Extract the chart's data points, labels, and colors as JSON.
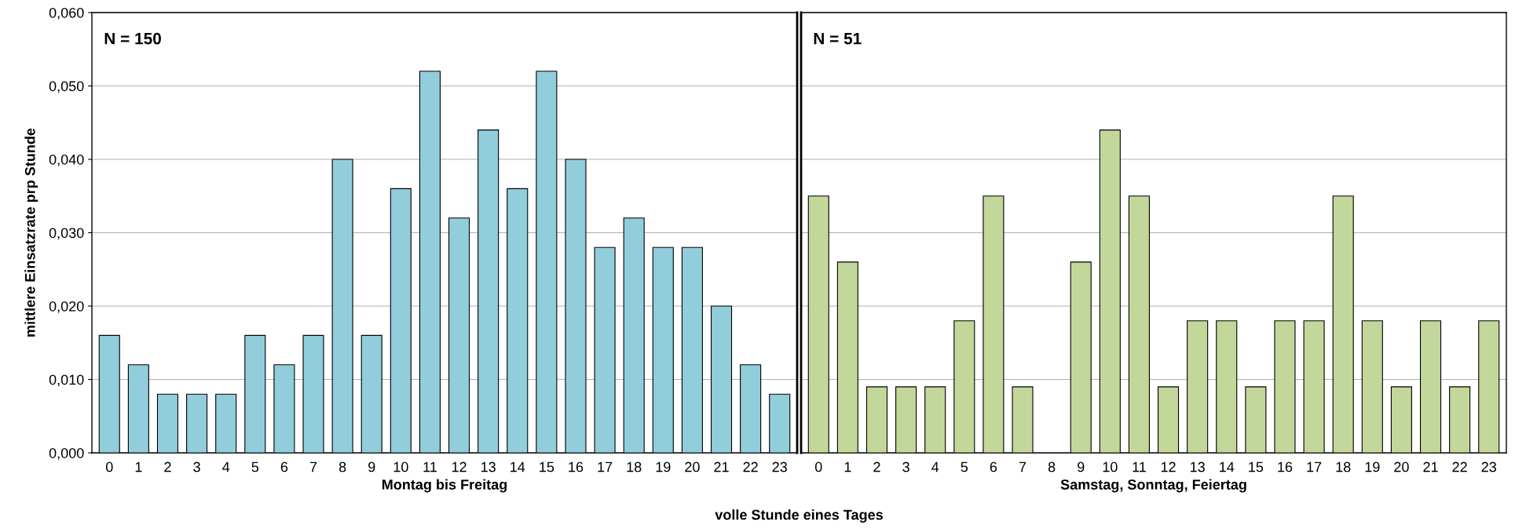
{
  "chart_data": [
    {
      "type": "bar",
      "xlabel": "Montag bis Freitag",
      "ylabel": "mittlere Einsatzrate prp Stunde",
      "categories": [
        "0",
        "1",
        "2",
        "3",
        "4",
        "5",
        "6",
        "7",
        "8",
        "9",
        "10",
        "11",
        "12",
        "13",
        "14",
        "15",
        "16",
        "17",
        "18",
        "19",
        "20",
        "21",
        "22",
        "23"
      ],
      "values": [
        0.016,
        0.012,
        0.008,
        0.008,
        0.008,
        0.016,
        0.012,
        0.016,
        0.04,
        0.016,
        0.036,
        0.052,
        0.032,
        0.044,
        0.036,
        0.052,
        0.04,
        0.028,
        0.032,
        0.028,
        0.028,
        0.02,
        0.012,
        0.008
      ],
      "color": "#92cddc",
      "ylim": [
        0,
        0.06
      ],
      "yticks": [
        {
          "value": 0,
          "label": "0,000"
        },
        {
          "value": 0.01,
          "label": "0,010"
        },
        {
          "value": 0.02,
          "label": "0,020"
        },
        {
          "value": 0.03,
          "label": "0,030"
        },
        {
          "value": 0.04,
          "label": "0,040"
        },
        {
          "value": 0.05,
          "label": "0,050"
        },
        {
          "value": 0.06,
          "label": "0,060"
        }
      ],
      "grid": "y",
      "annotations": [
        "N = 150",
        "volle Stunde eines Tages"
      ]
    },
    {
      "type": "bar",
      "xlabel": "Samstag, Sonntag, Feiertag",
      "categories": [
        "0",
        "1",
        "2",
        "3",
        "4",
        "5",
        "6",
        "7",
        "8",
        "9",
        "10",
        "11",
        "12",
        "13",
        "14",
        "15",
        "16",
        "17",
        "18",
        "19",
        "20",
        "21",
        "22",
        "23"
      ],
      "values": [
        0.035,
        0.026,
        0.009,
        0.009,
        0.009,
        0.018,
        0.035,
        0.009,
        0,
        0.026,
        0.044,
        0.035,
        0.009,
        0.018,
        0.018,
        0.009,
        0.018,
        0.018,
        0.035,
        0.018,
        0.009,
        0.018,
        0.009,
        0.018
      ],
      "color": "#c4d79b",
      "ylim": [
        0,
        0.06
      ],
      "yticks": [
        0,
        0.01,
        0.02,
        0.03,
        0.04,
        0.05,
        0.06
      ],
      "grid": "y",
      "tick_labels": "x",
      "annotations": [
        "N = 51"
      ]
    }
  ]
}
